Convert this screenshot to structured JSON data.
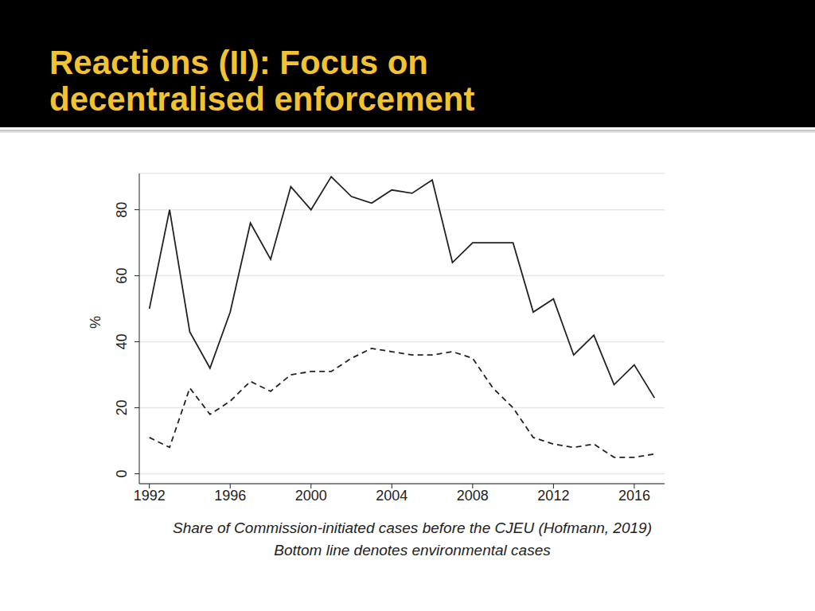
{
  "chart_data": {
    "type": "line",
    "title": "Reactions (II): Focus on decentralised enforcement",
    "y_label": "%",
    "annotations": [
      "Share of Commission-initiated cases before the CJEU (Hofmann, 2019)",
      "Bottom line denotes environmental cases"
    ],
    "x": [
      1992,
      1993,
      1994,
      1995,
      1996,
      1997,
      1998,
      1999,
      2000,
      2001,
      2002,
      2003,
      2004,
      2005,
      2006,
      2007,
      2008,
      2009,
      2010,
      2011,
      2012,
      2013,
      2014,
      2015,
      2016,
      2017
    ],
    "series": [
      {
        "color": "#222222",
        "line_style": "solid",
        "values": [
          50,
          80,
          43,
          32,
          49,
          76,
          65,
          87,
          80,
          90,
          84,
          82,
          86,
          85,
          89,
          64,
          70,
          70,
          70,
          49,
          53,
          36,
          42,
          27,
          33,
          23
        ]
      },
      {
        "color": "#222222",
        "line_style": "dashed",
        "values": [
          11,
          8,
          26,
          18,
          22,
          28,
          25,
          30,
          31,
          31,
          35,
          38,
          37,
          36,
          36,
          37,
          35,
          26,
          20,
          11,
          9,
          8,
          9,
          5,
          5,
          6
        ]
      }
    ],
    "xlim": [
      1991.5,
      2017.5
    ],
    "xticks": [
      1992,
      1996,
      2000,
      2004,
      2008,
      2012,
      2016
    ],
    "ylim": [
      -3,
      91
    ],
    "yticks": [
      0,
      20,
      40,
      60,
      80
    ],
    "grid": true
  }
}
